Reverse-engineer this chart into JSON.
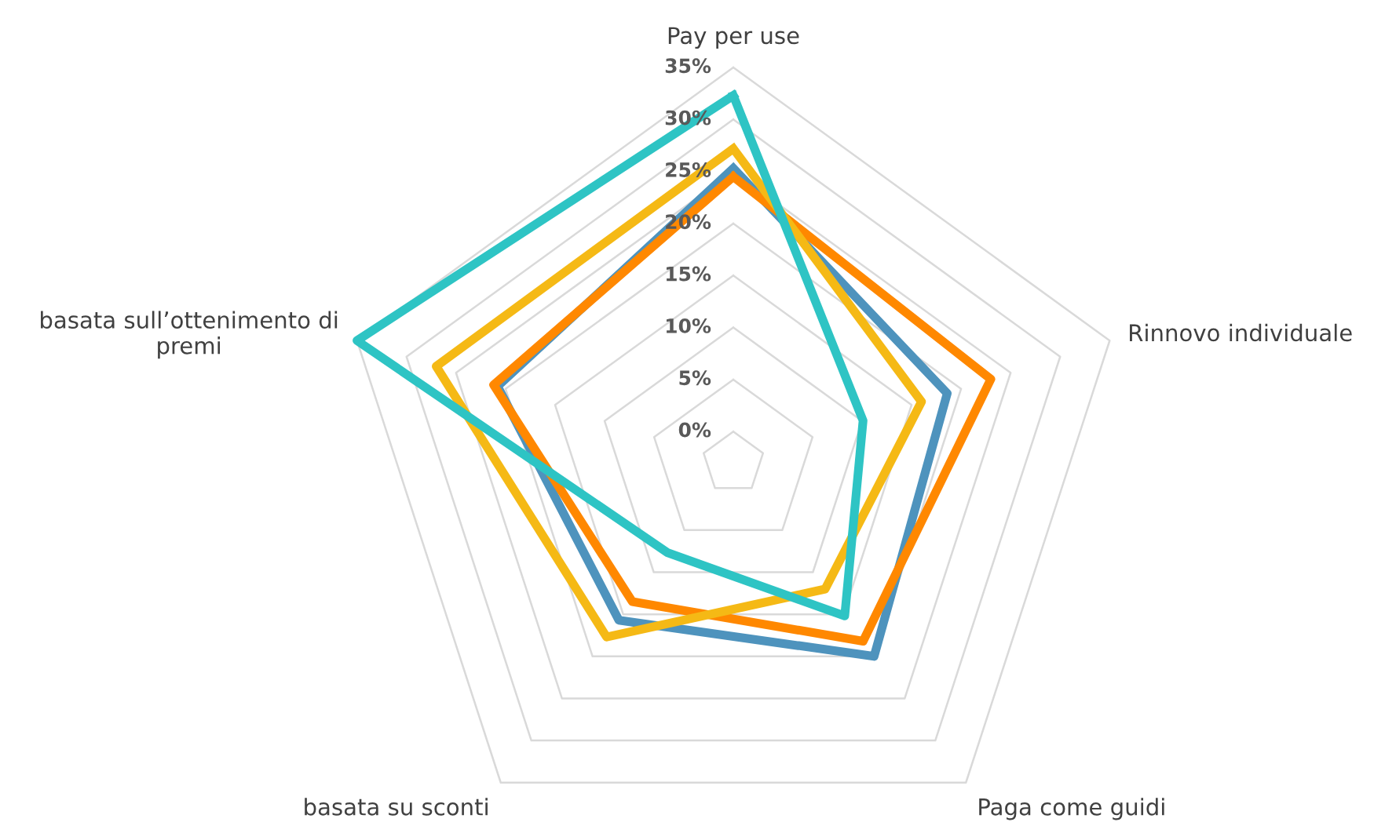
{
  "chart_data": {
    "type": "radar",
    "categories": [
      "Pay per use",
      "Rinnovo individuale",
      "Paga come guidi",
      "basata su sconti",
      "basata sull’ottenimento di\npremi"
    ],
    "series": [
      {
        "color": "#4e93bd",
        "values": [
          25.3,
          18.6,
          20,
          15.7,
          20.8
        ]
      },
      {
        "color": "#ff8800",
        "values": [
          24.5,
          23,
          18.2,
          13.5,
          21.2
        ]
      },
      {
        "color": "#f5b915",
        "values": [
          27.2,
          16,
          12,
          17.7,
          27
        ]
      },
      {
        "color": "#2ec4c4",
        "values": [
          32.3,
          10.1,
          15.2,
          7.7,
          35
        ]
      }
    ],
    "ylim": [
      -3,
      35
    ],
    "yticks": [
      {
        "value": 0,
        "label": "0%"
      },
      {
        "value": 5,
        "label": "5%"
      },
      {
        "value": 10,
        "label": "10%"
      },
      {
        "value": 15,
        "label": "15%"
      },
      {
        "value": 20,
        "label": "20%"
      },
      {
        "value": 25,
        "label": "25%"
      },
      {
        "value": 30,
        "label": "30%"
      },
      {
        "value": 35,
        "label": "35%"
      }
    ],
    "grid": true,
    "marker": "none",
    "line_style": "solid"
  }
}
